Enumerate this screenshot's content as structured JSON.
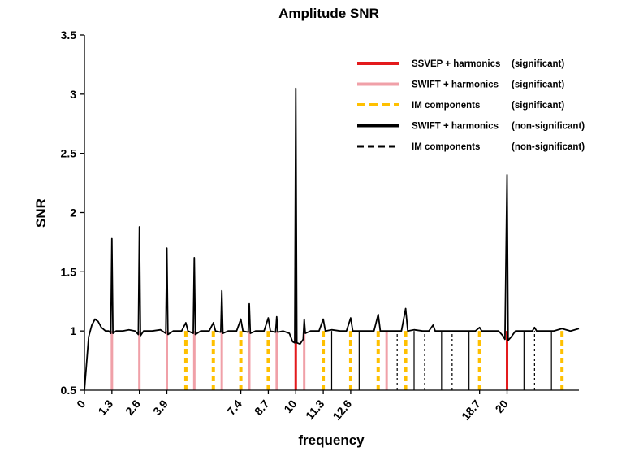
{
  "chart_data": {
    "type": "line",
    "title": "Amplitude SNR",
    "xlabel": "frequency",
    "ylabel": "SNR",
    "xlim": [
      0,
      23.4
    ],
    "ylim": [
      0.5,
      3.5
    ],
    "yticks": [
      "0.5",
      "1",
      "1.5",
      "2",
      "2.5",
      "3",
      "3.5"
    ],
    "xtick_labels": [
      {
        "x": 0,
        "label": "0"
      },
      {
        "x": 1.3,
        "label": "1.3"
      },
      {
        "x": 2.6,
        "label": "2.6"
      },
      {
        "x": 3.9,
        "label": "3.9"
      },
      {
        "x": 7.4,
        "label": "7.4"
      },
      {
        "x": 8.7,
        "label": "8.7"
      },
      {
        "x": 10,
        "label": "10"
      },
      {
        "x": 11.3,
        "label": "11.3"
      },
      {
        "x": 12.6,
        "label": "12.6"
      },
      {
        "x": 18.7,
        "label": "18.7"
      },
      {
        "x": 20,
        "label": "20"
      }
    ],
    "legend": {
      "placement": "top-right",
      "entries": [
        {
          "label": "SSVEP + harmonics",
          "status": "(significant)",
          "color": "#e31a1c",
          "style": "solid"
        },
        {
          "label": "SWIFT + harmonics",
          "status": "(significant)",
          "color": "#f0a0a8",
          "style": "solid"
        },
        {
          "label": "IM components",
          "status": "(significant)",
          "color": "#ffc000",
          "style": "dashed-yellow"
        },
        {
          "label": "SWIFT + harmonics",
          "status": "(non-significant)",
          "color": "#000000",
          "style": "solid"
        },
        {
          "label": "IM components",
          "status": "(non-significant)",
          "color": "#000000",
          "style": "dashed"
        }
      ]
    },
    "markers": [
      {
        "x": 1.3,
        "category": "swift_sig"
      },
      {
        "x": 2.6,
        "category": "swift_sig"
      },
      {
        "x": 3.9,
        "category": "swift_sig"
      },
      {
        "x": 4.8,
        "category": "im_sig"
      },
      {
        "x": 5.2,
        "category": "swift_sig"
      },
      {
        "x": 6.1,
        "category": "im_sig"
      },
      {
        "x": 6.5,
        "category": "swift_sig"
      },
      {
        "x": 7.4,
        "category": "im_sig"
      },
      {
        "x": 7.8,
        "category": "swift_sig"
      },
      {
        "x": 8.7,
        "category": "im_sig"
      },
      {
        "x": 9.1,
        "category": "swift_sig"
      },
      {
        "x": 10,
        "category": "ssvep_sig"
      },
      {
        "x": 10.4,
        "category": "swift_sig"
      },
      {
        "x": 11.3,
        "category": "im_sig"
      },
      {
        "x": 11.7,
        "category": "swift_nonsig"
      },
      {
        "x": 12.6,
        "category": "im_sig"
      },
      {
        "x": 13.0,
        "category": "swift_nonsig"
      },
      {
        "x": 13.9,
        "category": "im_sig"
      },
      {
        "x": 14.3,
        "category": "swift_sig"
      },
      {
        "x": 14.8,
        "category": "im_nonsig"
      },
      {
        "x": 15.2,
        "category": "im_sig"
      },
      {
        "x": 15.6,
        "category": "swift_nonsig"
      },
      {
        "x": 16.1,
        "category": "im_nonsig"
      },
      {
        "x": 16.9,
        "category": "swift_nonsig"
      },
      {
        "x": 17.4,
        "category": "im_nonsig"
      },
      {
        "x": 18.2,
        "category": "swift_nonsig"
      },
      {
        "x": 18.7,
        "category": "im_sig"
      },
      {
        "x": 20,
        "category": "ssvep_sig"
      },
      {
        "x": 20.8,
        "category": "swift_nonsig"
      },
      {
        "x": 21.3,
        "category": "im_nonsig"
      },
      {
        "x": 22.1,
        "category": "swift_nonsig"
      },
      {
        "x": 22.6,
        "category": "im_sig"
      }
    ],
    "series": [
      {
        "color": "#000000",
        "points": [
          [
            0,
            0.5
          ],
          [
            0.2,
            0.95
          ],
          [
            0.35,
            1.05
          ],
          [
            0.5,
            1.1
          ],
          [
            0.65,
            1.08
          ],
          [
            0.8,
            1.03
          ],
          [
            1.0,
            1.0
          ],
          [
            1.15,
            1.0
          ],
          [
            1.25,
            0.98
          ],
          [
            1.3,
            1.78
          ],
          [
            1.35,
            0.98
          ],
          [
            1.5,
            1.0
          ],
          [
            1.8,
            1.0
          ],
          [
            2.1,
            1.01
          ],
          [
            2.4,
            1.0
          ],
          [
            2.55,
            0.97
          ],
          [
            2.6,
            1.88
          ],
          [
            2.65,
            0.96
          ],
          [
            2.8,
            1.0
          ],
          [
            3.2,
            1.0
          ],
          [
            3.6,
            1.01
          ],
          [
            3.85,
            0.98
          ],
          [
            3.9,
            1.7
          ],
          [
            3.95,
            0.97
          ],
          [
            4.2,
            1.0
          ],
          [
            4.6,
            1.0
          ],
          [
            4.8,
            1.07
          ],
          [
            4.9,
            1.0
          ],
          [
            5.15,
            0.98
          ],
          [
            5.2,
            1.62
          ],
          [
            5.25,
            0.97
          ],
          [
            5.5,
            1.0
          ],
          [
            5.9,
            1.0
          ],
          [
            6.1,
            1.07
          ],
          [
            6.2,
            1.0
          ],
          [
            6.45,
            0.99
          ],
          [
            6.5,
            1.34
          ],
          [
            6.55,
            0.98
          ],
          [
            6.8,
            1.0
          ],
          [
            7.2,
            1.0
          ],
          [
            7.4,
            1.1
          ],
          [
            7.5,
            1.0
          ],
          [
            7.75,
            0.99
          ],
          [
            7.8,
            1.23
          ],
          [
            7.85,
            0.98
          ],
          [
            8.1,
            1.0
          ],
          [
            8.5,
            1.0
          ],
          [
            8.7,
            1.11
          ],
          [
            8.8,
            1.0
          ],
          [
            9.05,
            0.99
          ],
          [
            9.1,
            1.12
          ],
          [
            9.15,
            0.99
          ],
          [
            9.4,
            1.0
          ],
          [
            9.7,
            0.98
          ],
          [
            9.85,
            0.91
          ],
          [
            9.95,
            0.9
          ],
          [
            10,
            3.05
          ],
          [
            10.05,
            0.9
          ],
          [
            10.2,
            0.89
          ],
          [
            10.35,
            0.93
          ],
          [
            10.4,
            1.1
          ],
          [
            10.45,
            0.98
          ],
          [
            10.7,
            1.0
          ],
          [
            11.1,
            1.0
          ],
          [
            11.3,
            1.1
          ],
          [
            11.4,
            1.0
          ],
          [
            11.7,
            1.01
          ],
          [
            12.1,
            1.0
          ],
          [
            12.4,
            1.0
          ],
          [
            12.6,
            1.11
          ],
          [
            12.7,
            1.0
          ],
          [
            13.0,
            1.0
          ],
          [
            13.4,
            1.0
          ],
          [
            13.7,
            1.0
          ],
          [
            13.9,
            1.14
          ],
          [
            14.0,
            1.0
          ],
          [
            14.3,
            1.0
          ],
          [
            14.7,
            1.0
          ],
          [
            15.0,
            1.0
          ],
          [
            15.2,
            1.19
          ],
          [
            15.3,
            1.0
          ],
          [
            15.6,
            1.01
          ],
          [
            16.0,
            1.0
          ],
          [
            16.3,
            1.0
          ],
          [
            16.5,
            1.05
          ],
          [
            16.6,
            1.0
          ],
          [
            17.0,
            1.0
          ],
          [
            17.4,
            1.0
          ],
          [
            17.8,
            1.0
          ],
          [
            18.2,
            1.0
          ],
          [
            18.5,
            1.0
          ],
          [
            18.7,
            1.03
          ],
          [
            18.8,
            1.0
          ],
          [
            19.2,
            1.0
          ],
          [
            19.6,
            1.0
          ],
          [
            19.8,
            0.96
          ],
          [
            19.9,
            0.93
          ],
          [
            20,
            2.32
          ],
          [
            20.05,
            0.92
          ],
          [
            20.2,
            0.95
          ],
          [
            20.4,
            1.0
          ],
          [
            20.8,
            1.0
          ],
          [
            21.2,
            1.0
          ],
          [
            21.3,
            1.03
          ],
          [
            21.4,
            1.0
          ],
          [
            21.8,
            1.0
          ],
          [
            22.2,
            1.0
          ],
          [
            22.6,
            1.02
          ],
          [
            23.0,
            1.0
          ],
          [
            23.4,
            1.02
          ]
        ]
      }
    ]
  }
}
